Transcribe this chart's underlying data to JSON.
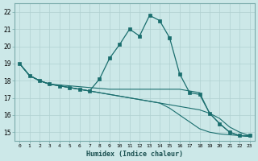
{
  "xlabel": "Humidex (Indice chaleur)",
  "bg_color": "#cce8e8",
  "grid_color": "#b0d0d0",
  "line_color": "#1a6e6e",
  "xlim": [
    -0.5,
    23.5
  ],
  "ylim": [
    14.5,
    22.5
  ],
  "xticks": [
    0,
    1,
    2,
    3,
    4,
    5,
    6,
    7,
    8,
    9,
    10,
    11,
    12,
    13,
    14,
    15,
    16,
    17,
    18,
    19,
    20,
    21,
    22,
    23
  ],
  "yticks": [
    15,
    16,
    17,
    18,
    19,
    20,
    21,
    22
  ],
  "series": [
    {
      "x": [
        0,
        1,
        2,
        3,
        4,
        5,
        6,
        7,
        8,
        9,
        10,
        11,
        12,
        13,
        14,
        15,
        16,
        17,
        18,
        19,
        20,
        21,
        22,
        23
      ],
      "y": [
        19.0,
        18.3,
        18.0,
        17.8,
        17.7,
        17.6,
        17.5,
        17.4,
        18.1,
        19.3,
        20.1,
        21.0,
        20.6,
        21.8,
        21.5,
        20.5,
        18.4,
        17.3,
        17.2,
        16.1,
        15.5,
        15.0,
        14.8,
        14.8
      ],
      "has_markers": true
    },
    {
      "x": [
        0,
        1,
        2,
        3,
        4,
        5,
        6,
        7,
        8,
        9,
        10,
        11,
        12,
        13,
        14,
        15,
        16,
        17,
        18,
        19,
        20,
        21,
        22,
        23
      ],
      "y": [
        19.0,
        18.3,
        18.0,
        17.8,
        17.75,
        17.7,
        17.65,
        17.6,
        17.55,
        17.5,
        17.5,
        17.5,
        17.5,
        17.5,
        17.5,
        17.5,
        17.5,
        17.4,
        17.3,
        16.1,
        15.5,
        15.0,
        14.8,
        14.75
      ],
      "has_markers": false
    },
    {
      "x": [
        0,
        1,
        2,
        3,
        4,
        5,
        6,
        7,
        8,
        9,
        10,
        11,
        12,
        13,
        14,
        15,
        16,
        17,
        18,
        19,
        20,
        21,
        22,
        23
      ],
      "y": [
        19.0,
        18.3,
        18.0,
        17.8,
        17.7,
        17.6,
        17.5,
        17.4,
        17.3,
        17.2,
        17.1,
        17.0,
        16.9,
        16.8,
        16.7,
        16.6,
        16.5,
        16.4,
        16.3,
        16.1,
        15.8,
        15.3,
        15.0,
        14.8
      ],
      "has_markers": false
    },
    {
      "x": [
        0,
        1,
        2,
        3,
        4,
        5,
        6,
        7,
        8,
        9,
        10,
        11,
        12,
        13,
        14,
        15,
        16,
        17,
        18,
        19,
        20,
        21,
        22,
        23
      ],
      "y": [
        19.0,
        18.3,
        18.0,
        17.8,
        17.7,
        17.6,
        17.5,
        17.4,
        17.3,
        17.2,
        17.1,
        17.0,
        16.9,
        16.8,
        16.7,
        16.4,
        16.0,
        15.6,
        15.2,
        15.0,
        14.9,
        14.85,
        14.8,
        14.75
      ],
      "has_markers": false
    }
  ]
}
